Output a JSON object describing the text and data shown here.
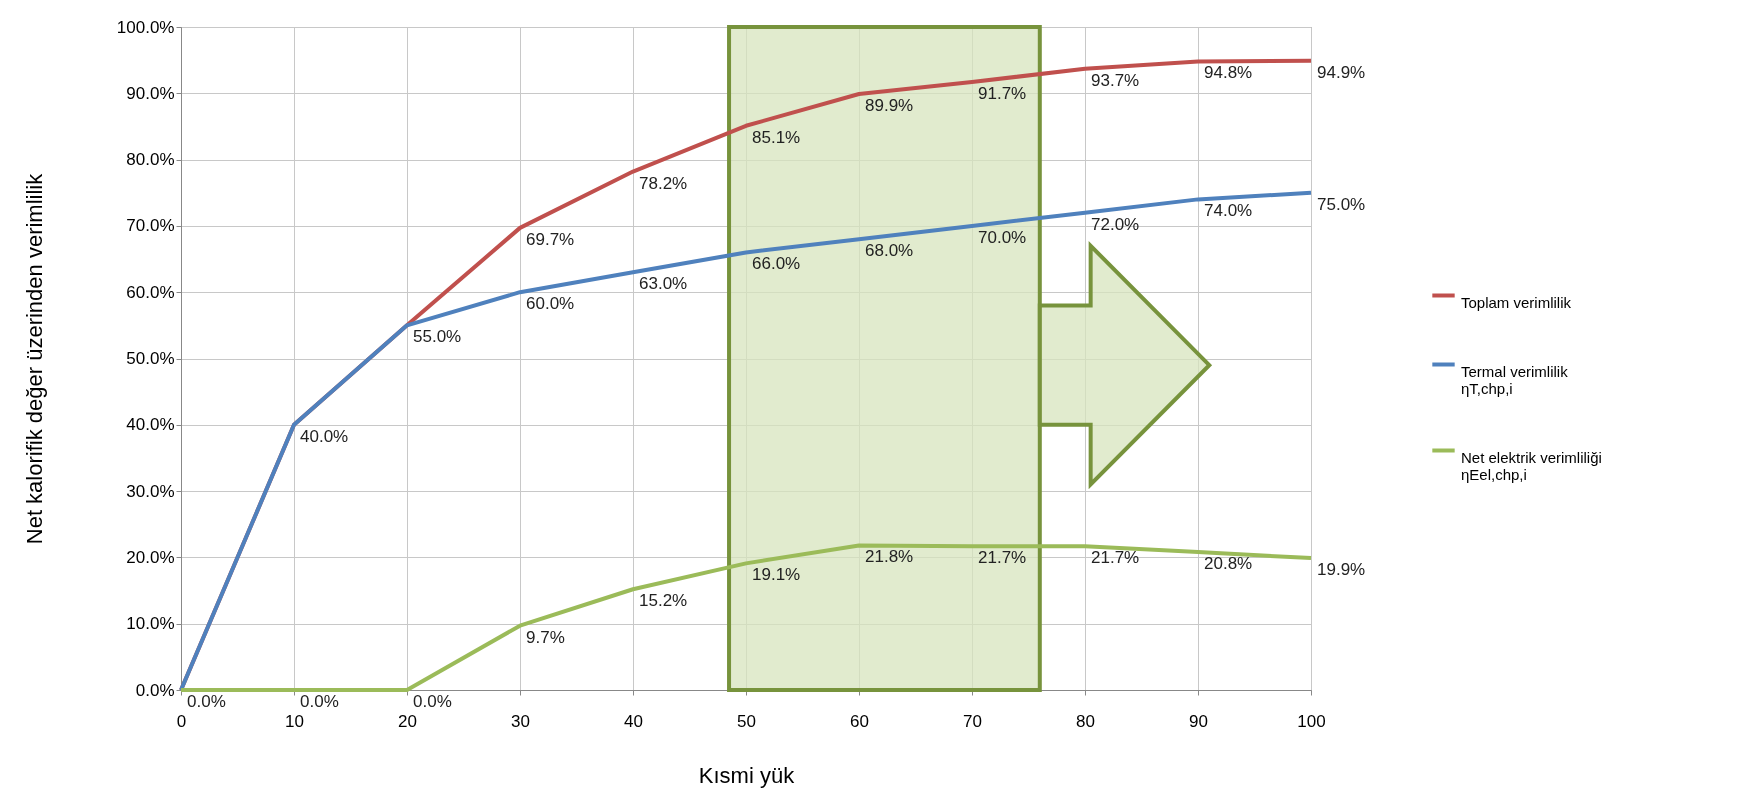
{
  "chart_data": {
    "type": "line",
    "xlabel": "Kısmi yük",
    "ylabel": "Net kalorifik değer üzerinden verimlilik",
    "x": [
      0,
      10,
      20,
      30,
      40,
      50,
      60,
      70,
      80,
      90,
      100
    ],
    "series": [
      {
        "name": "Toplam verimlilik",
        "color": "#c0504d",
        "values": [
          0,
          40,
          55,
          69.7,
          78.2,
          85.1,
          89.9,
          91.7,
          93.7,
          94.8,
          94.9
        ],
        "value_labels": [
          null,
          null,
          null,
          "69.7%",
          "78.2%",
          "85.1%",
          "89.9%",
          "91.7%",
          "93.7%",
          "94.8%",
          "94.9%"
        ]
      },
      {
        "name": "Termal verimlilik\nηT,chp,i",
        "color": "#4f81bd",
        "values": [
          0,
          40,
          55,
          60,
          63,
          66,
          68,
          70,
          72,
          74,
          75
        ],
        "value_labels": [
          null,
          "40.0%",
          "55.0%",
          "60.0%",
          "63.0%",
          "66.0%",
          "68.0%",
          "70.0%",
          "72.0%",
          "74.0%",
          "75.0%"
        ]
      },
      {
        "name": "Net elektrik verimliliği\nηEel,chp,i",
        "color": "#9bbb59",
        "values": [
          0,
          0,
          0,
          9.7,
          15.2,
          19.1,
          21.8,
          21.7,
          21.7,
          20.8,
          19.9
        ],
        "value_labels": [
          "0.0%",
          "0.0%",
          "0.0%",
          "9.7%",
          "15.2%",
          "19.1%",
          "21.8%",
          "21.7%",
          "21.7%",
          "20.8%",
          "19.9%"
        ]
      }
    ],
    "xlim": [
      0,
      100
    ],
    "xticks": [
      0,
      10,
      20,
      30,
      40,
      50,
      60,
      70,
      80,
      90,
      100
    ],
    "ylim": [
      0,
      100
    ],
    "yticks": [
      {
        "value": 0,
        "label": "0.0%"
      },
      {
        "value": 10,
        "label": "10.0%"
      },
      {
        "value": 20,
        "label": "20.0%"
      },
      {
        "value": 30,
        "label": "30.0%"
      },
      {
        "value": 40,
        "label": "40.0%"
      },
      {
        "value": 50,
        "label": "50.0%"
      },
      {
        "value": 60,
        "label": "60.0%"
      },
      {
        "value": 70,
        "label": "70.0%"
      },
      {
        "value": 80,
        "label": "80.0%"
      },
      {
        "value": 90,
        "label": "90.0%"
      },
      {
        "value": 100,
        "label": "100.0%"
      }
    ],
    "bands": [
      {
        "axis": "x",
        "from": 48.5,
        "to": 76,
        "color": "#d7e4bd"
      }
    ],
    "grid": true,
    "legend": "right",
    "marker": "none",
    "line_style": "solid"
  }
}
